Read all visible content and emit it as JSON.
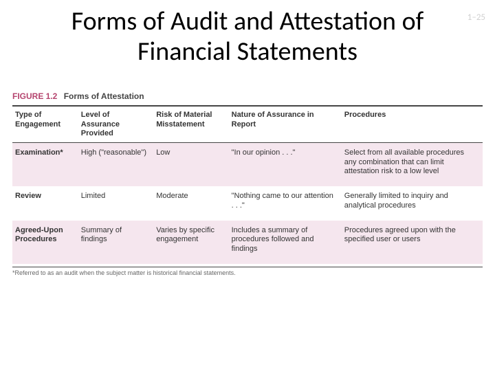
{
  "page_number": "1–25",
  "title": "Forms of Audit and Attestation of Financial Statements",
  "figure": {
    "number": "FIGURE 1.2",
    "title": "Forms of Attestation",
    "columns": [
      "Type of Engagement",
      "Level of Assurance Provided",
      "Risk of Material Misstatement",
      "Nature of Assurance in Report",
      "Procedures"
    ],
    "rows": [
      {
        "type": "Examination*",
        "level": "High (\"reasonable\")",
        "risk": "Low",
        "nature": "\"In our opinion . . .\"",
        "proc": "Select from all available procedures any combination that can limit attestation risk to a low level"
      },
      {
        "type": "Review",
        "level": "Limited",
        "risk": "Moderate",
        "nature": "\"Nothing came to our attention . . .\"",
        "proc": "Generally limited to inquiry and analytical procedures"
      },
      {
        "type": "Agreed-Upon Procedures",
        "level": "Summary of findings",
        "risk": "Varies by specific engagement",
        "nature": "Includes a summary of procedures followed and findings",
        "proc": "Procedures agreed upon with the specified user or users"
      }
    ],
    "footnote": "*Referred to as an audit when the subject matter is historical financial statements.",
    "colors": {
      "accent": "#b5446e",
      "stripe_bg": "#f5e6ee",
      "rule": "#444444",
      "page_number": "#d0d0d0"
    }
  }
}
